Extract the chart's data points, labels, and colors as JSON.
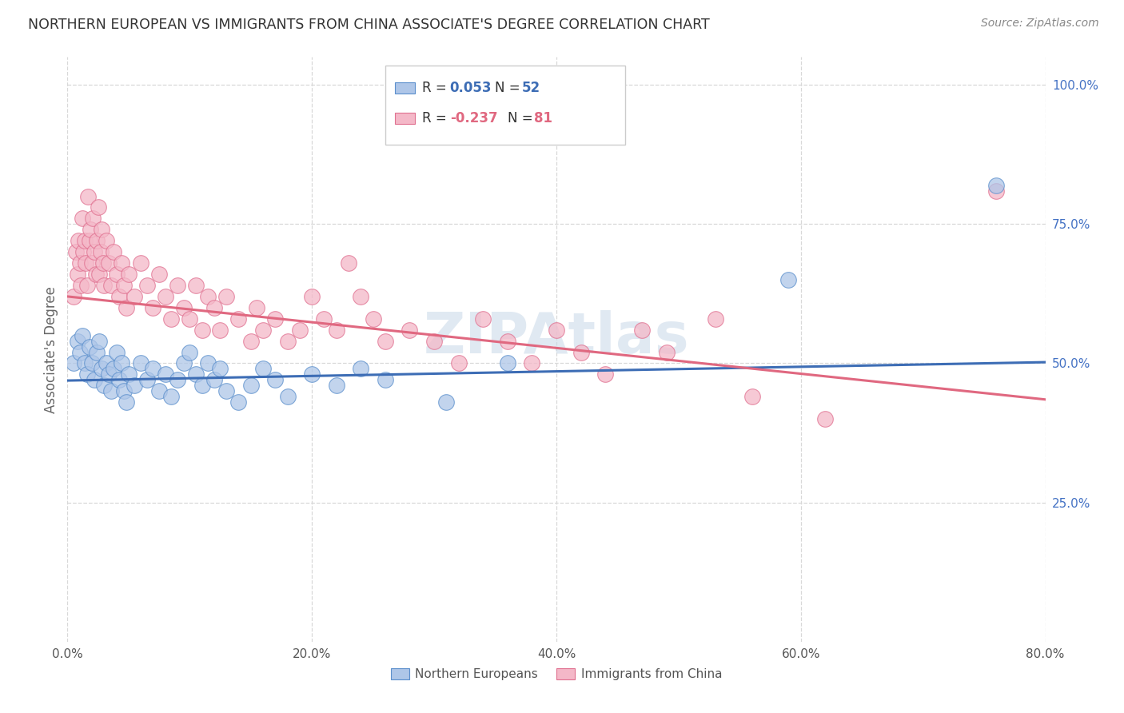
{
  "title": "NORTHERN EUROPEAN VS IMMIGRANTS FROM CHINA ASSOCIATE'S DEGREE CORRELATION CHART",
  "source": "Source: ZipAtlas.com",
  "ylabel": "Associate's Degree",
  "xlim": [
    0,
    0.8
  ],
  "ylim": [
    0.0,
    1.05
  ],
  "watermark": "ZIPAtlas",
  "blue_color": "#aec6e8",
  "pink_color": "#f4b8c8",
  "blue_edge_color": "#5b8fcc",
  "pink_edge_color": "#e07090",
  "blue_line_color": "#3d6db5",
  "pink_line_color": "#e06880",
  "ytick_color": "#4472C4",
  "xtick_color": "#555555",
  "grid_color": "#d8d8d8",
  "bg_color": "#ffffff",
  "title_fontsize": 12.5,
  "source_fontsize": 10,
  "tick_fontsize": 11,
  "legend_fontsize": 12,
  "watermark_fontsize": 52,
  "blue_scatter": [
    [
      0.005,
      0.5
    ],
    [
      0.008,
      0.54
    ],
    [
      0.01,
      0.52
    ],
    [
      0.012,
      0.55
    ],
    [
      0.014,
      0.5
    ],
    [
      0.016,
      0.48
    ],
    [
      0.018,
      0.53
    ],
    [
      0.02,
      0.5
    ],
    [
      0.022,
      0.47
    ],
    [
      0.024,
      0.52
    ],
    [
      0.026,
      0.54
    ],
    [
      0.028,
      0.49
    ],
    [
      0.03,
      0.46
    ],
    [
      0.032,
      0.5
    ],
    [
      0.034,
      0.48
    ],
    [
      0.036,
      0.45
    ],
    [
      0.038,
      0.49
    ],
    [
      0.04,
      0.52
    ],
    [
      0.042,
      0.47
    ],
    [
      0.044,
      0.5
    ],
    [
      0.046,
      0.45
    ],
    [
      0.048,
      0.43
    ],
    [
      0.05,
      0.48
    ],
    [
      0.055,
      0.46
    ],
    [
      0.06,
      0.5
    ],
    [
      0.065,
      0.47
    ],
    [
      0.07,
      0.49
    ],
    [
      0.075,
      0.45
    ],
    [
      0.08,
      0.48
    ],
    [
      0.085,
      0.44
    ],
    [
      0.09,
      0.47
    ],
    [
      0.095,
      0.5
    ],
    [
      0.1,
      0.52
    ],
    [
      0.105,
      0.48
    ],
    [
      0.11,
      0.46
    ],
    [
      0.115,
      0.5
    ],
    [
      0.12,
      0.47
    ],
    [
      0.125,
      0.49
    ],
    [
      0.13,
      0.45
    ],
    [
      0.14,
      0.43
    ],
    [
      0.15,
      0.46
    ],
    [
      0.16,
      0.49
    ],
    [
      0.17,
      0.47
    ],
    [
      0.18,
      0.44
    ],
    [
      0.2,
      0.48
    ],
    [
      0.22,
      0.46
    ],
    [
      0.24,
      0.49
    ],
    [
      0.26,
      0.47
    ],
    [
      0.31,
      0.43
    ],
    [
      0.36,
      0.5
    ],
    [
      0.59,
      0.65
    ],
    [
      0.76,
      0.82
    ]
  ],
  "pink_scatter": [
    [
      0.005,
      0.62
    ],
    [
      0.007,
      0.7
    ],
    [
      0.008,
      0.66
    ],
    [
      0.009,
      0.72
    ],
    [
      0.01,
      0.68
    ],
    [
      0.011,
      0.64
    ],
    [
      0.012,
      0.76
    ],
    [
      0.013,
      0.7
    ],
    [
      0.014,
      0.72
    ],
    [
      0.015,
      0.68
    ],
    [
      0.016,
      0.64
    ],
    [
      0.017,
      0.8
    ],
    [
      0.018,
      0.72
    ],
    [
      0.019,
      0.74
    ],
    [
      0.02,
      0.68
    ],
    [
      0.021,
      0.76
    ],
    [
      0.022,
      0.7
    ],
    [
      0.023,
      0.66
    ],
    [
      0.024,
      0.72
    ],
    [
      0.025,
      0.78
    ],
    [
      0.026,
      0.66
    ],
    [
      0.027,
      0.7
    ],
    [
      0.028,
      0.74
    ],
    [
      0.029,
      0.68
    ],
    [
      0.03,
      0.64
    ],
    [
      0.032,
      0.72
    ],
    [
      0.034,
      0.68
    ],
    [
      0.036,
      0.64
    ],
    [
      0.038,
      0.7
    ],
    [
      0.04,
      0.66
    ],
    [
      0.042,
      0.62
    ],
    [
      0.044,
      0.68
    ],
    [
      0.046,
      0.64
    ],
    [
      0.048,
      0.6
    ],
    [
      0.05,
      0.66
    ],
    [
      0.055,
      0.62
    ],
    [
      0.06,
      0.68
    ],
    [
      0.065,
      0.64
    ],
    [
      0.07,
      0.6
    ],
    [
      0.075,
      0.66
    ],
    [
      0.08,
      0.62
    ],
    [
      0.085,
      0.58
    ],
    [
      0.09,
      0.64
    ],
    [
      0.095,
      0.6
    ],
    [
      0.1,
      0.58
    ],
    [
      0.105,
      0.64
    ],
    [
      0.11,
      0.56
    ],
    [
      0.115,
      0.62
    ],
    [
      0.12,
      0.6
    ],
    [
      0.125,
      0.56
    ],
    [
      0.13,
      0.62
    ],
    [
      0.14,
      0.58
    ],
    [
      0.15,
      0.54
    ],
    [
      0.155,
      0.6
    ],
    [
      0.16,
      0.56
    ],
    [
      0.17,
      0.58
    ],
    [
      0.18,
      0.54
    ],
    [
      0.19,
      0.56
    ],
    [
      0.2,
      0.62
    ],
    [
      0.21,
      0.58
    ],
    [
      0.22,
      0.56
    ],
    [
      0.23,
      0.68
    ],
    [
      0.24,
      0.62
    ],
    [
      0.25,
      0.58
    ],
    [
      0.26,
      0.54
    ],
    [
      0.28,
      0.56
    ],
    [
      0.3,
      0.54
    ],
    [
      0.32,
      0.5
    ],
    [
      0.34,
      0.58
    ],
    [
      0.36,
      0.54
    ],
    [
      0.38,
      0.5
    ],
    [
      0.4,
      0.56
    ],
    [
      0.42,
      0.52
    ],
    [
      0.44,
      0.48
    ],
    [
      0.47,
      0.56
    ],
    [
      0.49,
      0.52
    ],
    [
      0.53,
      0.58
    ],
    [
      0.56,
      0.44
    ],
    [
      0.62,
      0.4
    ],
    [
      0.76,
      0.81
    ]
  ],
  "blue_trend_x": [
    0.0,
    0.8
  ],
  "blue_trend_y": [
    0.469,
    0.502
  ],
  "pink_trend_x": [
    0.0,
    0.8
  ],
  "pink_trend_y": [
    0.62,
    0.435
  ]
}
